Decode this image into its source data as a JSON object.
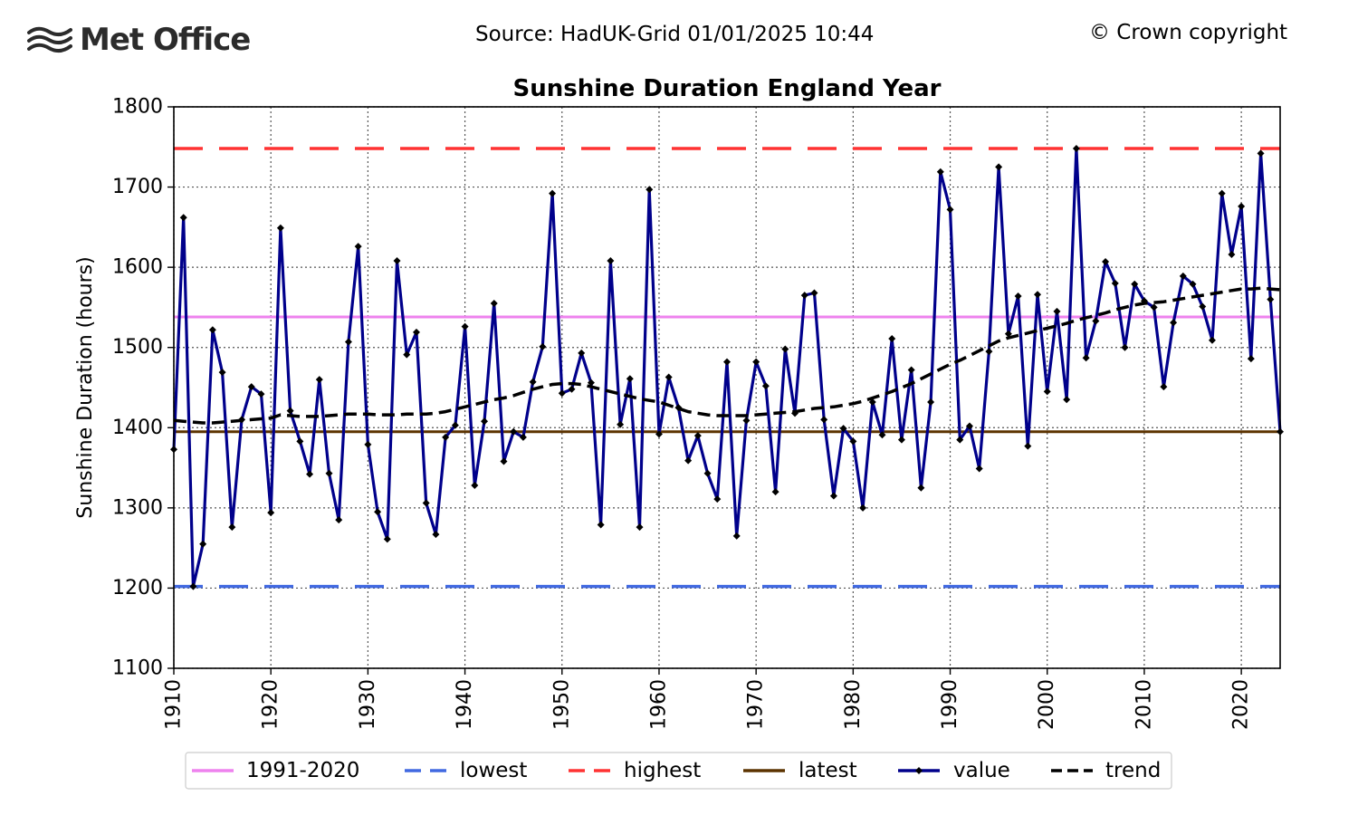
{
  "header": {
    "brand": "Met Office",
    "source": "Source: HadUK-Grid 01/01/2025 10:44",
    "copyright": "© Crown copyright"
  },
  "colors": {
    "avg": "#ee82ee",
    "lowest": "#4169e1",
    "highest": "#ff3333",
    "latest": "#5c3300",
    "value": "#00008b",
    "marker": "#000000",
    "trend": "#000000"
  },
  "chart_data": {
    "type": "line",
    "title": "Sunshine Duration England Year",
    "xlabel": "",
    "ylabel": "Sunshine Duration (hours)",
    "xlim": [
      1910,
      2024
    ],
    "ylim": [
      1100,
      1800
    ],
    "xticks": [
      1910,
      1920,
      1930,
      1940,
      1950,
      1960,
      1970,
      1980,
      1990,
      2000,
      2010,
      2020
    ],
    "yticks": [
      1100,
      1200,
      1300,
      1400,
      1500,
      1600,
      1700,
      1800
    ],
    "grid": true,
    "legend_position": "bottom",
    "reference_lines": {
      "avg_1991_2020": 1538,
      "lowest": 1202,
      "highest": 1748,
      "latest": 1395
    },
    "legend": [
      "1991-2020",
      "lowest",
      "highest",
      "latest",
      "value",
      "trend"
    ],
    "x": [
      1910,
      1911,
      1912,
      1913,
      1914,
      1915,
      1916,
      1917,
      1918,
      1919,
      1920,
      1921,
      1922,
      1923,
      1924,
      1925,
      1926,
      1927,
      1928,
      1929,
      1930,
      1931,
      1932,
      1933,
      1934,
      1935,
      1936,
      1937,
      1938,
      1939,
      1940,
      1941,
      1942,
      1943,
      1944,
      1945,
      1946,
      1947,
      1948,
      1949,
      1950,
      1951,
      1952,
      1953,
      1954,
      1955,
      1956,
      1957,
      1958,
      1959,
      1960,
      1961,
      1962,
      1963,
      1964,
      1965,
      1966,
      1967,
      1968,
      1969,
      1970,
      1971,
      1972,
      1973,
      1974,
      1975,
      1976,
      1977,
      1978,
      1979,
      1980,
      1981,
      1982,
      1983,
      1984,
      1985,
      1986,
      1987,
      1988,
      1989,
      1990,
      1991,
      1992,
      1993,
      1994,
      1995,
      1996,
      1997,
      1998,
      1999,
      2000,
      2001,
      2002,
      2003,
      2004,
      2005,
      2006,
      2007,
      2008,
      2009,
      2010,
      2011,
      2012,
      2013,
      2014,
      2015,
      2016,
      2017,
      2018,
      2019,
      2020,
      2021,
      2022,
      2023,
      2024
    ],
    "series": [
      {
        "name": "value",
        "values": [
          1373,
          1662,
          1202,
          1255,
          1522,
          1469,
          1276,
          1410,
          1451,
          1442,
          1294,
          1649,
          1421,
          1383,
          1342,
          1460,
          1343,
          1285,
          1507,
          1626,
          1379,
          1295,
          1261,
          1608,
          1491,
          1519,
          1306,
          1267,
          1388,
          1403,
          1526,
          1328,
          1408,
          1555,
          1358,
          1395,
          1388,
          1457,
          1501,
          1692,
          1443,
          1448,
          1493,
          1456,
          1279,
          1608,
          1404,
          1461,
          1276,
          1697,
          1392,
          1463,
          1425,
          1359,
          1390,
          1343,
          1311,
          1482,
          1265,
          1409,
          1482,
          1452,
          1320,
          1498,
          1418,
          1565,
          1568,
          1410,
          1315,
          1399,
          1383,
          1300,
          1432,
          1391,
          1511,
          1385,
          1472,
          1325,
          1432,
          1719,
          1672,
          1385,
          1402,
          1349,
          1495,
          1725,
          1517,
          1564,
          1377,
          1566,
          1445,
          1545,
          1435,
          1748,
          1487,
          1533,
          1607,
          1580,
          1500,
          1579,
          1558,
          1550,
          1451,
          1531,
          1589,
          1579,
          1551,
          1509,
          1692,
          1616,
          1676,
          1486,
          1742,
          1560,
          1395
        ]
      },
      {
        "name": "trend",
        "values": [
          1409,
          1408,
          1407,
          1406,
          1406,
          1407,
          1408,
          1409,
          1410,
          1411,
          1412,
          1416,
          1415,
          1414,
          1414,
          1414,
          1415,
          1416,
          1417,
          1417,
          1417,
          1416,
          1416,
          1416,
          1417,
          1417,
          1417,
          1418,
          1420,
          1423,
          1426,
          1429,
          1432,
          1435,
          1437,
          1440,
          1444,
          1448,
          1451,
          1454,
          1455,
          1455,
          1454,
          1451,
          1448,
          1445,
          1442,
          1439,
          1436,
          1434,
          1432,
          1428,
          1424,
          1420,
          1418,
          1416,
          1415,
          1415,
          1415,
          1415,
          1416,
          1417,
          1418,
          1419,
          1420,
          1422,
          1424,
          1425,
          1426,
          1428,
          1430,
          1433,
          1437,
          1441,
          1445,
          1450,
          1455,
          1461,
          1467,
          1473,
          1479,
          1484,
          1490,
          1496,
          1502,
          1508,
          1512,
          1515,
          1518,
          1521,
          1524,
          1527,
          1530,
          1534,
          1537,
          1540,
          1543,
          1547,
          1550,
          1553,
          1555,
          1556,
          1557,
          1559,
          1561,
          1563,
          1565,
          1567,
          1569,
          1571,
          1573,
          1573,
          1574,
          1573,
          1572
        ]
      }
    ]
  }
}
